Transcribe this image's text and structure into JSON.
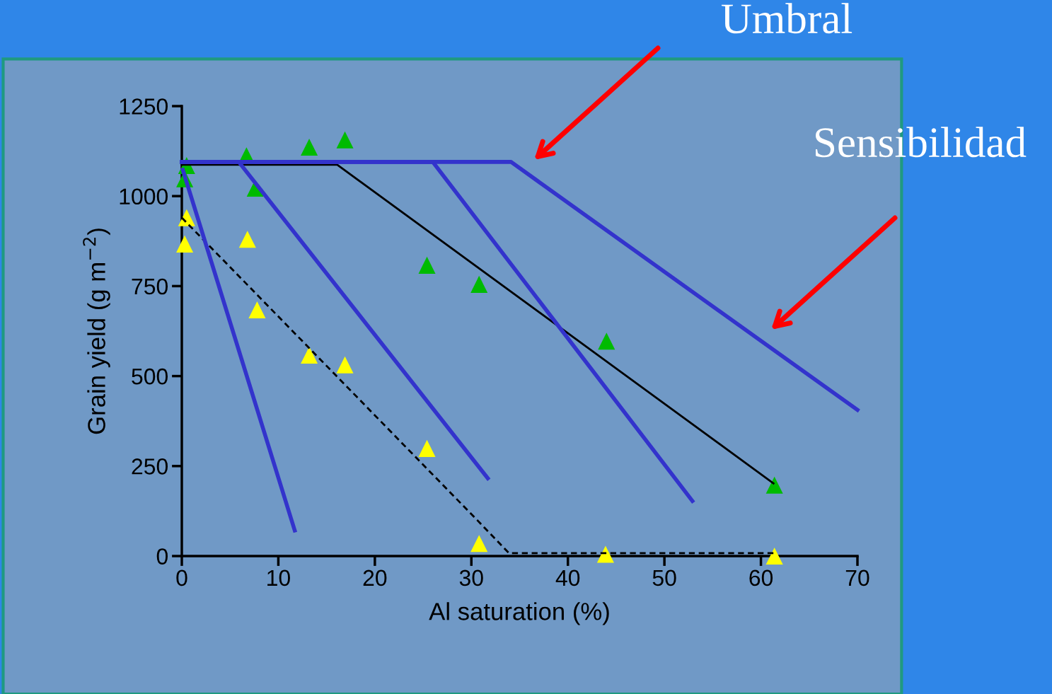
{
  "chart_data": {
    "type": "scatter",
    "xlabel": "Al saturation (%)",
    "ylabel": "Grain yield (g m$^{−2}$)",
    "xlim": [
      0,
      70
    ],
    "xticks": [
      0,
      10,
      20,
      30,
      40,
      50,
      60,
      70
    ],
    "ylim": [
      0,
      1250
    ],
    "yticks": [
      0,
      250,
      500,
      750,
      1000,
      1250
    ],
    "grid": false,
    "legend": false,
    "marker": "triangle",
    "series": [
      {
        "color": "#00bb00",
        "x": [
          0.5,
          0.3,
          6.7,
          7.6,
          13.2,
          16.9,
          25.4,
          30.8,
          44,
          61.4
        ],
        "values": [
          1085,
          1048,
          1112,
          1022,
          1136,
          1156,
          808,
          755,
          597,
          197
        ]
      },
      {
        "color": "#ffff00",
        "x": [
          0.5,
          0.3,
          6.8,
          7.8,
          13.2,
          16.9,
          25.4,
          30.8,
          43.9,
          61.4
        ],
        "values": [
          940,
          867,
          880,
          684,
          558,
          531,
          299,
          35,
          5,
          0
        ]
      },
      {
        "type": "line",
        "color": "#000000",
        "line_style": "solid",
        "marker": "none",
        "x": [
          0,
          16.1,
          61.3
        ],
        "values": [
          1087,
          1087,
          202
        ]
      },
      {
        "type": "line",
        "color": "#000000",
        "line_style": "dashed",
        "marker": "none",
        "x": [
          0,
          30.6,
          33.9,
          61.4
        ],
        "values": [
          940,
          100,
          8,
          8
        ]
      },
      {
        "type": "line",
        "color": "#3333cc",
        "line_style": "solid",
        "marker": "none",
        "x": [
          0.1,
          11.7
        ],
        "values": [
          1073,
          71
        ]
      },
      {
        "type": "line",
        "color": "#3333cc",
        "line_style": "solid",
        "marker": "none",
        "x": [
          0,
          5.9,
          31.7
        ],
        "values": [
          1095,
          1095,
          216
        ]
      },
      {
        "type": "line",
        "color": "#3333cc",
        "line_style": "solid",
        "marker": "none",
        "x": [
          0,
          26.0,
          52.9
        ],
        "values": [
          1095,
          1095,
          153
        ]
      },
      {
        "type": "line",
        "color": "#3333cc",
        "line_style": "solid",
        "marker": "none",
        "x": [
          0,
          34.1,
          70
        ],
        "values": [
          1095,
          1095,
          406
        ]
      }
    ],
    "annotations": [
      "Umbral",
      "Sensibilidad"
    ]
  }
}
